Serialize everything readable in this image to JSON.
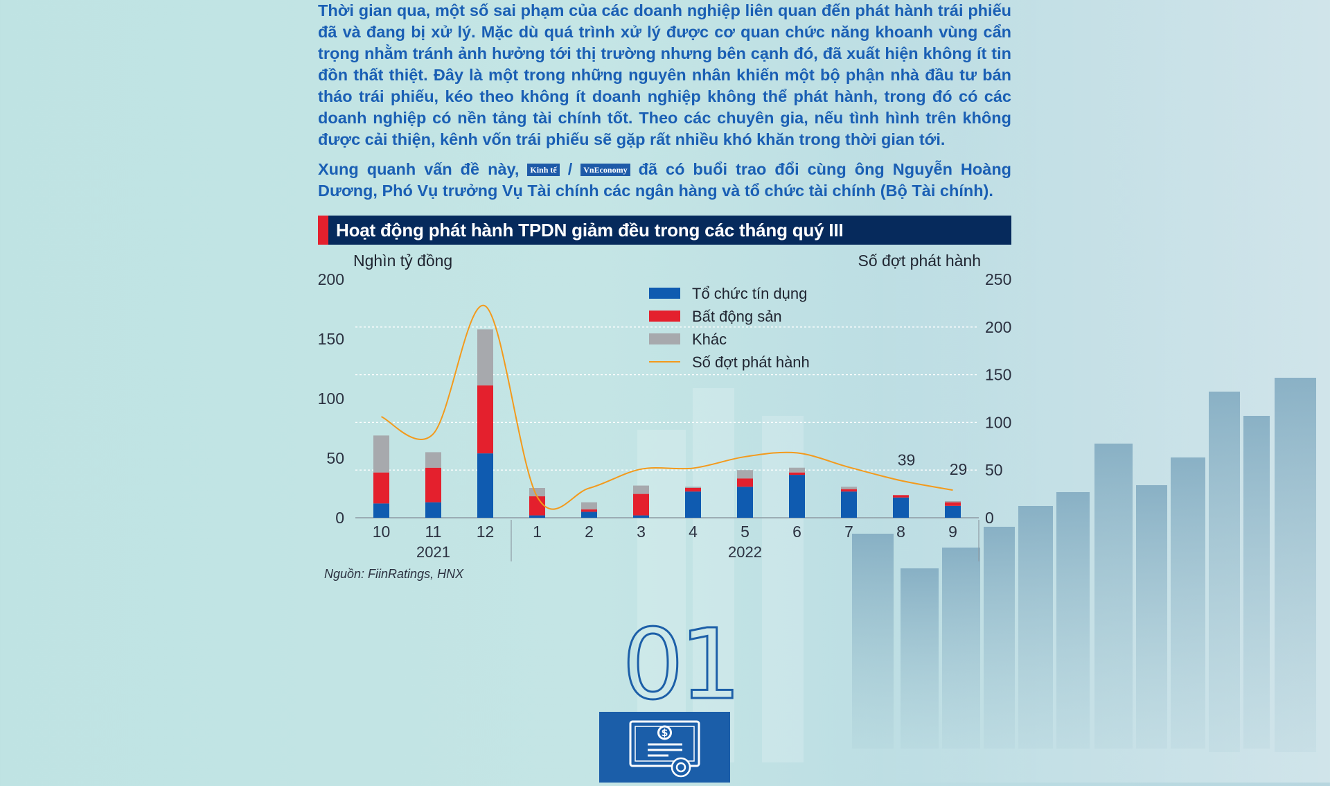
{
  "intro": {
    "paragraph1": "Thời gian qua, một số sai phạm của các doanh nghiệp liên quan đến phát hành trái phiếu đã và đang bị xử lý. Mặc dù quá trình xử lý được cơ quan chức năng khoanh vùng cẩn trọng nhằm tránh ảnh hưởng tới thị trường nhưng bên cạnh đó, đã xuất hiện không ít tin đồn thất thiệt. Đây là một trong những nguyên nhân khiến một bộ phận nhà đầu tư bán tháo trái phiếu, kéo theo không ít doanh nghiệp không thể phát hành, trong đó có các doanh nghiệp có nền tảng tài chính tốt. Theo các chuyên gia, nếu tình hình trên không được cải thiện, kênh vốn trái phiếu sẽ gặp rất nhiều khó khăn trong thời gian tới.",
    "paragraph2_before": "Xung quanh vấn đề này,",
    "logo1": "Kinh tế",
    "separator": "/",
    "logo2": "VnEconomy",
    "paragraph2_after": "đã có buổi trao đổi cùng ông Nguyễn Hoàng Dương, Phó Vụ trưởng Vụ Tài chính các ngân hàng và tổ chức tài chính (Bộ Tài chính)."
  },
  "chart_header": {
    "title": "Hoạt động phát hành TPDN giảm đều trong các tháng quý III",
    "accent_color": "#e4202d",
    "bar_color": "#062a5c"
  },
  "source": "Nguồn: FiinRatings, HNX",
  "section_number": "01",
  "icon": "certificate-dollar-icon",
  "chart_data": {
    "type": "bar",
    "stacked": true,
    "categories": [
      "10",
      "11",
      "12",
      "1",
      "2",
      "3",
      "4",
      "5",
      "6",
      "7",
      "8",
      "9"
    ],
    "year_groups": [
      {
        "label": "2021",
        "months": [
          "10",
          "11",
          "12"
        ]
      },
      {
        "label": "2022",
        "months": [
          "1",
          "2",
          "3",
          "4",
          "5",
          "6",
          "7",
          "8",
          "9"
        ]
      }
    ],
    "ylabel_left": "Nghìn tỷ đồng",
    "ylabel_right": "Số đợt phát hành",
    "ylim_left": [
      0,
      200
    ],
    "ylim_right": [
      0,
      250
    ],
    "yticks_left": [
      0,
      50,
      100,
      150,
      200
    ],
    "yticks_right": [
      0,
      50,
      100,
      150,
      200,
      250
    ],
    "legend_position": "top-center",
    "series": [
      {
        "name": "Tổ chức tín dụng",
        "color": "#0f5bb0",
        "values": [
          12,
          13,
          54,
          2,
          5,
          2,
          22,
          26,
          36,
          22,
          17,
          10
        ]
      },
      {
        "name": "Bất động sản",
        "color": "#e4202d",
        "values": [
          26,
          29,
          57,
          16,
          2,
          18,
          3,
          7,
          2,
          2,
          2,
          3
        ]
      },
      {
        "name": "Khác",
        "color": "#a7a9ad",
        "values": [
          31,
          13,
          47,
          7,
          6,
          7,
          1,
          7,
          4,
          2,
          0,
          1
        ]
      }
    ],
    "line": {
      "name": "Số đợt phát hành",
      "color": "#f39a1c",
      "axis": "right",
      "values": [
        106,
        88,
        222,
        22,
        31,
        51,
        52,
        64,
        68,
        53,
        39,
        29
      ],
      "labels": [
        {
          "month": "8",
          "text": "39"
        },
        {
          "month": "9",
          "text": "29"
        }
      ]
    }
  }
}
